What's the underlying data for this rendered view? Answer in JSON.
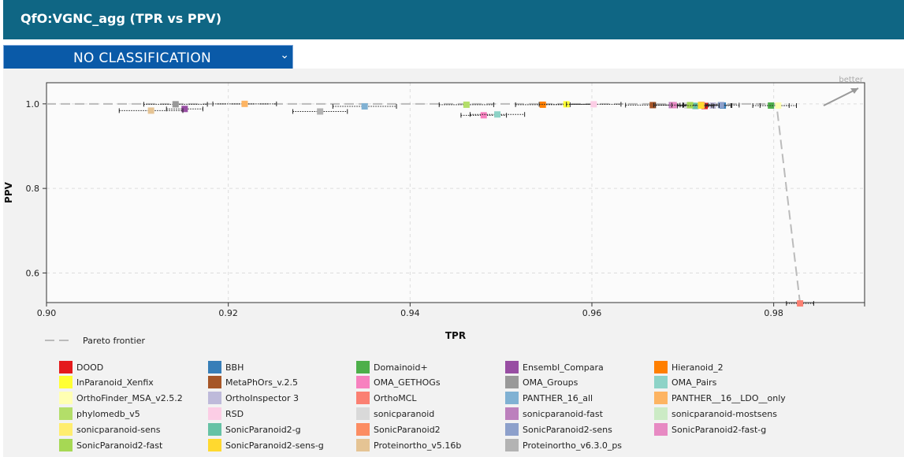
{
  "header": {
    "title": "QfO:VGNC_agg (TPR vs PPV)"
  },
  "classification": {
    "selected": "NO CLASSIFICATION",
    "caret": "⌄"
  },
  "chart_data": {
    "type": "scatter",
    "xlabel": "TPR",
    "ylabel": "PPV",
    "xlim": [
      0.9,
      0.99
    ],
    "ylim": [
      0.53,
      1.05
    ],
    "xticks": [
      0.9,
      0.92,
      0.94,
      0.96,
      0.98
    ],
    "yticks": [
      0.6,
      0.8,
      1.0
    ],
    "xtick_labels": [
      "0.90",
      "0.92",
      "0.94",
      "0.96",
      "0.98"
    ],
    "ytick_labels": [
      "0.6",
      "0.8",
      "1.0"
    ],
    "grid": true,
    "better_label": "better",
    "pareto_label": "Pareto frontier",
    "pareto": [
      [
        0.9,
        1.0
      ],
      [
        0.9803,
        1.0
      ],
      [
        0.9829,
        0.528
      ]
    ],
    "points": [
      {
        "name": "DOOD",
        "x": 0.9724,
        "y": 0.995,
        "xerr": 0.001,
        "color": "#e41a1c"
      },
      {
        "name": "BBH",
        "x": 0.9744,
        "y": 0.996,
        "xerr": 0.001,
        "color": "#377eb8"
      },
      {
        "name": "Domainoid+",
        "x": 0.9797,
        "y": 0.996,
        "xerr": 0.002,
        "color": "#4daf4a"
      },
      {
        "name": "Ensembl_Compara",
        "x": 0.9152,
        "y": 0.988,
        "xerr": 0.002,
        "color": "#984ea3"
      },
      {
        "name": "Hieranoid_2",
        "x": 0.9546,
        "y": 0.998,
        "xerr": 0.003,
        "color": "#ff7f00"
      },
      {
        "name": "InParanoid_Xenfix",
        "x": 0.9572,
        "y": 0.999,
        "xerr": 0.003,
        "color": "#ffff33"
      },
      {
        "name": "MetaPhOrs_v.2.5",
        "x": 0.9667,
        "y": 0.997,
        "xerr": 0.003,
        "color": "#a65628"
      },
      {
        "name": "OMA_GETHOGs",
        "x": 0.9481,
        "y": 0.973,
        "xerr": 0.0025,
        "color": "#f781bf"
      },
      {
        "name": "OMA_Groups",
        "x": 0.9142,
        "y": 0.999,
        "xerr": 0.0035,
        "color": "#999999"
      },
      {
        "name": "OMA_Pairs",
        "x": 0.9496,
        "y": 0.975,
        "xerr": 0.003,
        "color": "#8dd3c7"
      },
      {
        "name": "OrthoFinder_MSA_v2.5.2",
        "x": 0.9805,
        "y": 0.996,
        "xerr": 0.002,
        "color": "#ffffb3"
      },
      {
        "name": "OrthoInspector 3",
        "x": 0.9733,
        "y": 0.996,
        "xerr": 0.002,
        "color": "#bebada"
      },
      {
        "name": "OrthoMCL",
        "x": 0.9829,
        "y": 0.528,
        "xerr": 0.0015,
        "color": "#fb8072"
      },
      {
        "name": "PANTHER_16_all",
        "x": 0.935,
        "y": 0.994,
        "xerr": 0.0035,
        "color": "#80b1d3"
      },
      {
        "name": "PANTHER__16__LDO__only",
        "x": 0.9218,
        "y": 1.0,
        "xerr": 0.0035,
        "color": "#fdb462"
      },
      {
        "name": "phylomedb_v5",
        "x": 0.9462,
        "y": 0.998,
        "xerr": 0.003,
        "color": "#b3de69"
      },
      {
        "name": "RSD",
        "x": 0.9602,
        "y": 0.999,
        "xerr": 0.003,
        "color": "#fccde5"
      },
      {
        "name": "sonicparanoid",
        "x": 0.9705,
        "y": 0.996,
        "xerr": 0.002,
        "color": "#d9d9d9"
      },
      {
        "name": "sonicparanoid-fast",
        "x": 0.9688,
        "y": 0.997,
        "xerr": 0.002,
        "color": "#bc80bd"
      },
      {
        "name": "sonicparanoid-mostsens",
        "x": 0.9712,
        "y": 0.996,
        "xerr": 0.002,
        "color": "#ccebc5"
      },
      {
        "name": "sonicparanoid-sens",
        "x": 0.972,
        "y": 0.998,
        "xerr": 0.002,
        "color": "#ffed6f"
      },
      {
        "name": "SonicParanoid2-g",
        "x": 0.9714,
        "y": 0.995,
        "xerr": 0.002,
        "color": "#66c2a5"
      },
      {
        "name": "SonicParanoid2",
        "x": 0.9721,
        "y": 0.997,
        "xerr": 0.002,
        "color": "#fc8d62"
      },
      {
        "name": "SonicParanoid2-sens",
        "x": 0.9742,
        "y": 0.997,
        "xerr": 0.002,
        "color": "#8da0cb"
      },
      {
        "name": "SonicParanoid2-fast-g",
        "x": 0.969,
        "y": 0.997,
        "xerr": 0.002,
        "color": "#e78ac3"
      },
      {
        "name": "SonicParanoid2-fast",
        "x": 0.9708,
        "y": 0.997,
        "xerr": 0.002,
        "color": "#a6d854"
      },
      {
        "name": "SonicParanoid2-sens-g",
        "x": 0.972,
        "y": 0.996,
        "xerr": 0.002,
        "color": "#ffd92f"
      },
      {
        "name": "Proteinortho_v5.16b",
        "x": 0.9115,
        "y": 0.984,
        "xerr": 0.0035,
        "color": "#e5c494"
      },
      {
        "name": "Proteinortho_v6.3.0_ps",
        "x": 0.9301,
        "y": 0.982,
        "xerr": 0.003,
        "color": "#b3b3b3"
      }
    ]
  }
}
